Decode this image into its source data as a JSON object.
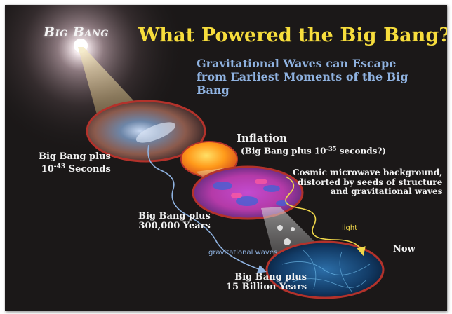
{
  "logo_text": "Big Bang",
  "title": "What Powered the Big Bang?",
  "subtitle": "Gravitational Waves can Escape from Earliest Moments of the Big Bang",
  "inflation": {
    "label": "Inflation",
    "time_prefix": "(Big Bang plus 10",
    "time_exponent": "-35",
    "time_suffix": " seconds?)"
  },
  "stage_planck": {
    "line1": "Big Bang plus",
    "base": "10",
    "exponent": "-43",
    "unit": " Seconds"
  },
  "stage_cmb": {
    "line1": "Big Bang plus",
    "line2": "300,000 Years"
  },
  "stage_now": {
    "line1": "Big Bang plus",
    "line2": "15 Billion Years"
  },
  "cmb_note": [
    "Cosmic microwave background,",
    "distorted by seeds of structure",
    "and gravitational waves"
  ],
  "arrow_labels": {
    "light": "light",
    "gravitational_waves": "gravitational waves"
  },
  "now_label": "Now",
  "colors": {
    "background": "#1b1818",
    "title": "#f7dd3c",
    "subtitle": "#8fb2e0",
    "light_arrow": "#f0d74a",
    "gravitational_wave_arrow": "#8fb2e0",
    "disk_rim": "#b3322b"
  }
}
